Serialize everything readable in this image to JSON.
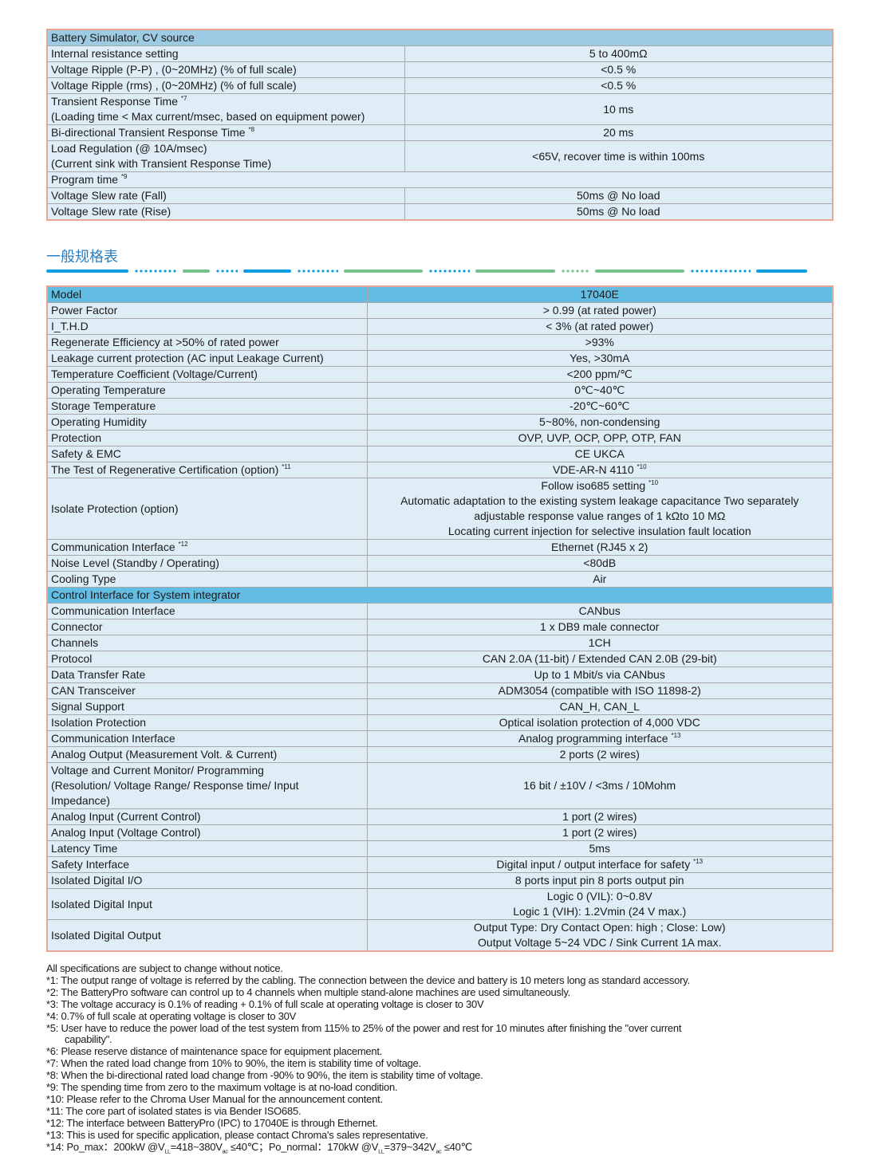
{
  "table1": {
    "header": "Battery Simulator, CV source",
    "rows": [
      {
        "label": "Internal resistance setting",
        "value": "5 to 400mΩ"
      },
      {
        "label": "Voltage Ripple (P-P) , (0~20MHz) (% of full scale)",
        "value": "<0.5 %"
      },
      {
        "label": "Voltage Ripple (rms) , (0~20MHz) (% of full scale)",
        "value": "<0.5 %"
      },
      {
        "label": "Transient Response Time",
        "sup": "*7",
        "label2": "(Loading time < Max current/msec, based on equipment power)",
        "value": "10 ms"
      },
      {
        "label": "Bi-directional Transient Response Time",
        "sup": "*8",
        "value": "20 ms"
      },
      {
        "label": "Load Regulation (@ 10A/msec)",
        "label2": "(Current sink with Transient Response Time)",
        "value": "<65V, recover time is within 100ms"
      },
      {
        "label": "Program time",
        "sup": "*9"
      },
      {
        "label": "Voltage Slew rate (Fall)",
        "value": "50ms @ No load"
      },
      {
        "label": "Voltage Slew rate (Rise)",
        "value": "50ms @ No load"
      }
    ]
  },
  "section_title": "一般规格表",
  "table2": {
    "header": {
      "label": "Model",
      "value": "17040E"
    },
    "rows": [
      {
        "label": "Power Factor",
        "value": "> 0.99 (at rated power)"
      },
      {
        "label": "I_T.H.D",
        "value": "< 3% (at rated power)"
      },
      {
        "label": "Regenerate Efficiency at >50% of rated power",
        "value": ">93%"
      },
      {
        "label": "Leakage current protection (AC input Leakage Current)",
        "value": "Yes, >30mA"
      },
      {
        "label": "Temperature Coefficient (Voltage/Current)",
        "value": "<200 ppm/℃"
      },
      {
        "label": "Operating Temperature",
        "value": "0℃~40℃"
      },
      {
        "label": "Storage Temperature",
        "value": "-20℃~60℃"
      },
      {
        "label": "Operating Humidity",
        "value": "5~80%, non-condensing"
      },
      {
        "label": "Protection",
        "value": "OVP, UVP, OCP, OPP, OTP, FAN"
      },
      {
        "label": "Safety & EMC",
        "value": "CE UKCA"
      },
      {
        "label": "The Test of Regenerative Certification (option)",
        "sup": "*11",
        "value": "VDE-AR-N 4110",
        "vsup": "*10"
      }
    ],
    "isolate": {
      "label": "Isolate Protection (option)",
      "lines": [
        "Follow iso685 setting",
        "Automatic adaptation to the existing system leakage capacitance Two separately",
        "adjustable response value ranges of 1 kΩto 10 MΩ",
        "Locating current injection for selective insulation fault location"
      ],
      "sup": "*10"
    },
    "rows_b": [
      {
        "label": "Communication Interface",
        "sup": "*12",
        "value": "Ethernet (RJ45 x 2)"
      },
      {
        "label": "Noise Level (Standby / Operating)",
        "value": "<80dB"
      },
      {
        "label": "Cooling Type",
        "value": "Air"
      }
    ],
    "control_header": "Control Interface for System integrator",
    "rows_c": [
      {
        "label": "Communication Interface",
        "value": "CANbus"
      },
      {
        "label": "Connector",
        "value": "1 x DB9 male connector"
      },
      {
        "label": "Channels",
        "value": "1CH"
      },
      {
        "label": "Protocol",
        "value": "CAN 2.0A (11-bit) / Extended CAN 2.0B (29-bit)"
      },
      {
        "label": "Data Transfer Rate",
        "value": "Up to 1 Mbit/s via CANbus"
      },
      {
        "label": "CAN Transceiver",
        "value": "ADM3054 (compatible with ISO 11898-2)"
      },
      {
        "label": "Signal Support",
        "value": "CAN_H, CAN_L"
      },
      {
        "label": "Isolation Protection",
        "value": "Optical isolation protection of 4,000 VDC"
      },
      {
        "label": "Communication Interface",
        "value": "Analog programming interface",
        "vsup": "*13"
      },
      {
        "label": "Analog Output (Measurement Volt. & Current)",
        "value": "2 ports (2 wires)"
      }
    ],
    "monitor": {
      "lines": [
        "Voltage and Current Monitor/ Programming",
        "(Resolution/ Voltage Range/ Response time/ Input",
        "Impedance)"
      ],
      "value": "16 bit / ±10V / <3ms / 10Mohm"
    },
    "rows_d": [
      {
        "label": "Analog Input (Current Control)",
        "value": "1 port (2 wires)"
      },
      {
        "label": "Analog Input (Voltage Control)",
        "value": "1 port (2 wires)"
      },
      {
        "label": "Latency Time",
        "value": "5ms"
      },
      {
        "label": "Safety Interface",
        "value": "Digital input / output interface for safety",
        "vsup": "*13"
      },
      {
        "label": "Isolated Digital I/O",
        "value": "8 ports input pin 8 ports output pin"
      }
    ],
    "din": {
      "label": "Isolated Digital Input",
      "lines": [
        "Logic 0 (VIL): 0~0.8V",
        "Logic 1 (VIH): 1.2Vmin (24 V max.)"
      ]
    },
    "dout": {
      "label": "Isolated Digital Output",
      "lines": [
        "Output Type: Dry Contact Open: high ; Close: Low)",
        "Output Voltage 5~24 VDC / Sink Current 1A max."
      ]
    }
  },
  "notes": [
    "All specifications are subject to change without notice.",
    "*1: The output range of voltage is referred by the cabling. The connection between the device and battery is 10 meters long as standard accessory.",
    "*2: The BatteryPro software can control up to 4 channels when multiple stand-alone machines are used simultaneously.",
    "*3: The voltage accuracy is 0.1% of reading + 0.1% of full scale at operating voltage is closer to 30V",
    "*4: 0.7% of full scale at operating voltage is closer to 30V",
    "*5: User have to reduce the power load of the test system from 115% to 25% of the power and rest for 10 minutes after finishing the \"over current",
    "capability\".",
    "*6: Please reserve distance of maintenance space for equipment placement.",
    "*7: When the rated load change from 10% to 90%, the item is stability time of voltage.",
    "*8: When the bi-directional rated load change from -90% to 90%, the item is stability time of voltage.",
    "*9: The spending time from zero to the maximum voltage is at no-load condition.",
    "*10: Please refer to the Chroma User Manual for the announcement content.",
    "*11: The core part of isolated states is via Bender ISO685.",
    "*12: The interface between BatteryPro (IPC) to 17040E is through Ethernet.",
    "*13: This is used for specific application, please contact Chroma's sales representative."
  ],
  "note14": {
    "a": "*14: Po_max：200kW @V",
    "s1": "LL",
    "b": "=418~380V",
    "s2": "ac",
    "c": " ≤40℃；Po_normal：170kW @V",
    "s3": "LL",
    "d": "=379~342V",
    "s4": "ac",
    "e": " ≤40℃"
  },
  "colors": {
    "header_light": "#9ccbe3",
    "header_strong": "#63bce1",
    "cell": "#dfedf7",
    "border_outer": "#e9a594",
    "title": "#2b7fc0",
    "dash_blue": "#0e9ee0",
    "dash_green": "#77c28a"
  }
}
